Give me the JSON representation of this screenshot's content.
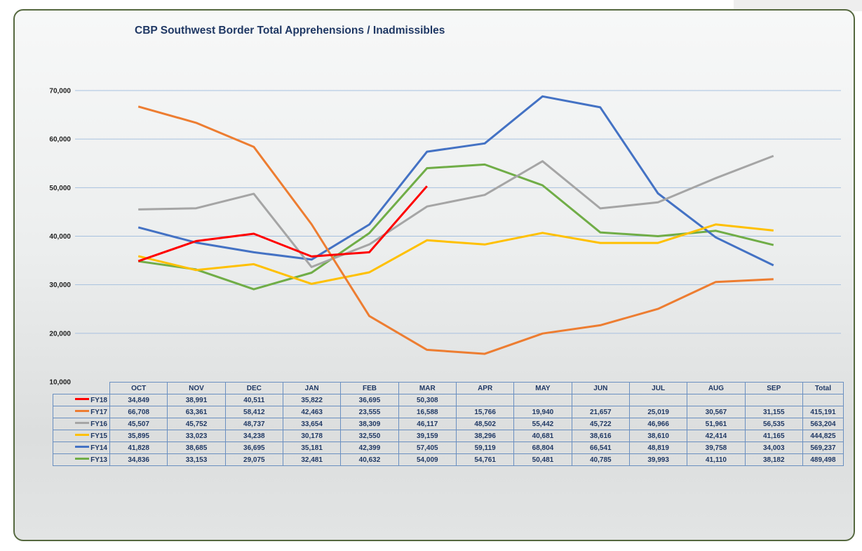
{
  "chart_data": {
    "type": "line",
    "title": "CBP Southwest Border Total Apprehensions / Inadmissibles",
    "categories": [
      "OCT",
      "NOV",
      "DEC",
      "JAN",
      "FEB",
      "MAR",
      "APR",
      "MAY",
      "JUN",
      "JUL",
      "AUG",
      "SEP"
    ],
    "total_label": "Total",
    "ylim": [
      10000,
      70000
    ],
    "yticks": [
      "10,000",
      "20,000",
      "30,000",
      "40,000",
      "50,000",
      "60,000",
      "70,000"
    ],
    "grid": true,
    "legend": "data-table",
    "series": [
      {
        "name": "FY18",
        "color": "#ff0000",
        "values": [
          34849,
          38991,
          40511,
          35822,
          36695,
          50308,
          null,
          null,
          null,
          null,
          null,
          null
        ],
        "labels": [
          "34,849",
          "38,991",
          "40,511",
          "35,822",
          "36,695",
          "50,308",
          "",
          "",
          "",
          "",
          "",
          ""
        ],
        "total": ""
      },
      {
        "name": "FY17",
        "color": "#ed7d31",
        "values": [
          66708,
          63361,
          58412,
          42463,
          23555,
          16588,
          15766,
          19940,
          21657,
          25019,
          30567,
          31155
        ],
        "labels": [
          "66,708",
          "63,361",
          "58,412",
          "42,463",
          "23,555",
          "16,588",
          "15,766",
          "19,940",
          "21,657",
          "25,019",
          "30,567",
          "31,155"
        ],
        "total": "415,191"
      },
      {
        "name": "FY16",
        "color": "#a5a5a5",
        "values": [
          45507,
          45752,
          48737,
          33654,
          38309,
          46117,
          48502,
          55442,
          45722,
          46966,
          51961,
          56535
        ],
        "labels": [
          "45,507",
          "45,752",
          "48,737",
          "33,654",
          "38,309",
          "46,117",
          "48,502",
          "55,442",
          "45,722",
          "46,966",
          "51,961",
          "56,535"
        ],
        "total": "563,204"
      },
      {
        "name": "FY15",
        "color": "#ffc000",
        "values": [
          35895,
          33023,
          34238,
          30178,
          32550,
          39159,
          38296,
          40681,
          38616,
          38610,
          42414,
          41165
        ],
        "labels": [
          "35,895",
          "33,023",
          "34,238",
          "30,178",
          "32,550",
          "39,159",
          "38,296",
          "40,681",
          "38,616",
          "38,610",
          "42,414",
          "41,165"
        ],
        "total": "444,825"
      },
      {
        "name": "FY14",
        "color": "#4472c4",
        "values": [
          41828,
          38685,
          36695,
          35181,
          42399,
          57405,
          59119,
          68804,
          66541,
          48819,
          39758,
          34003
        ],
        "labels": [
          "41,828",
          "38,685",
          "36,695",
          "35,181",
          "42,399",
          "57,405",
          "59,119",
          "68,804",
          "66,541",
          "48,819",
          "39,758",
          "34,003"
        ],
        "total": "569,237"
      },
      {
        "name": "FY13",
        "color": "#70ad47",
        "values": [
          34836,
          33153,
          29075,
          32481,
          40632,
          54009,
          54761,
          50481,
          40785,
          39993,
          41110,
          38182
        ],
        "labels": [
          "34,836",
          "33,153",
          "29,075",
          "32,481",
          "40,632",
          "54,009",
          "54,761",
          "50,481",
          "40,785",
          "39,993",
          "41,110",
          "38,182"
        ],
        "total": "489,498"
      }
    ]
  }
}
